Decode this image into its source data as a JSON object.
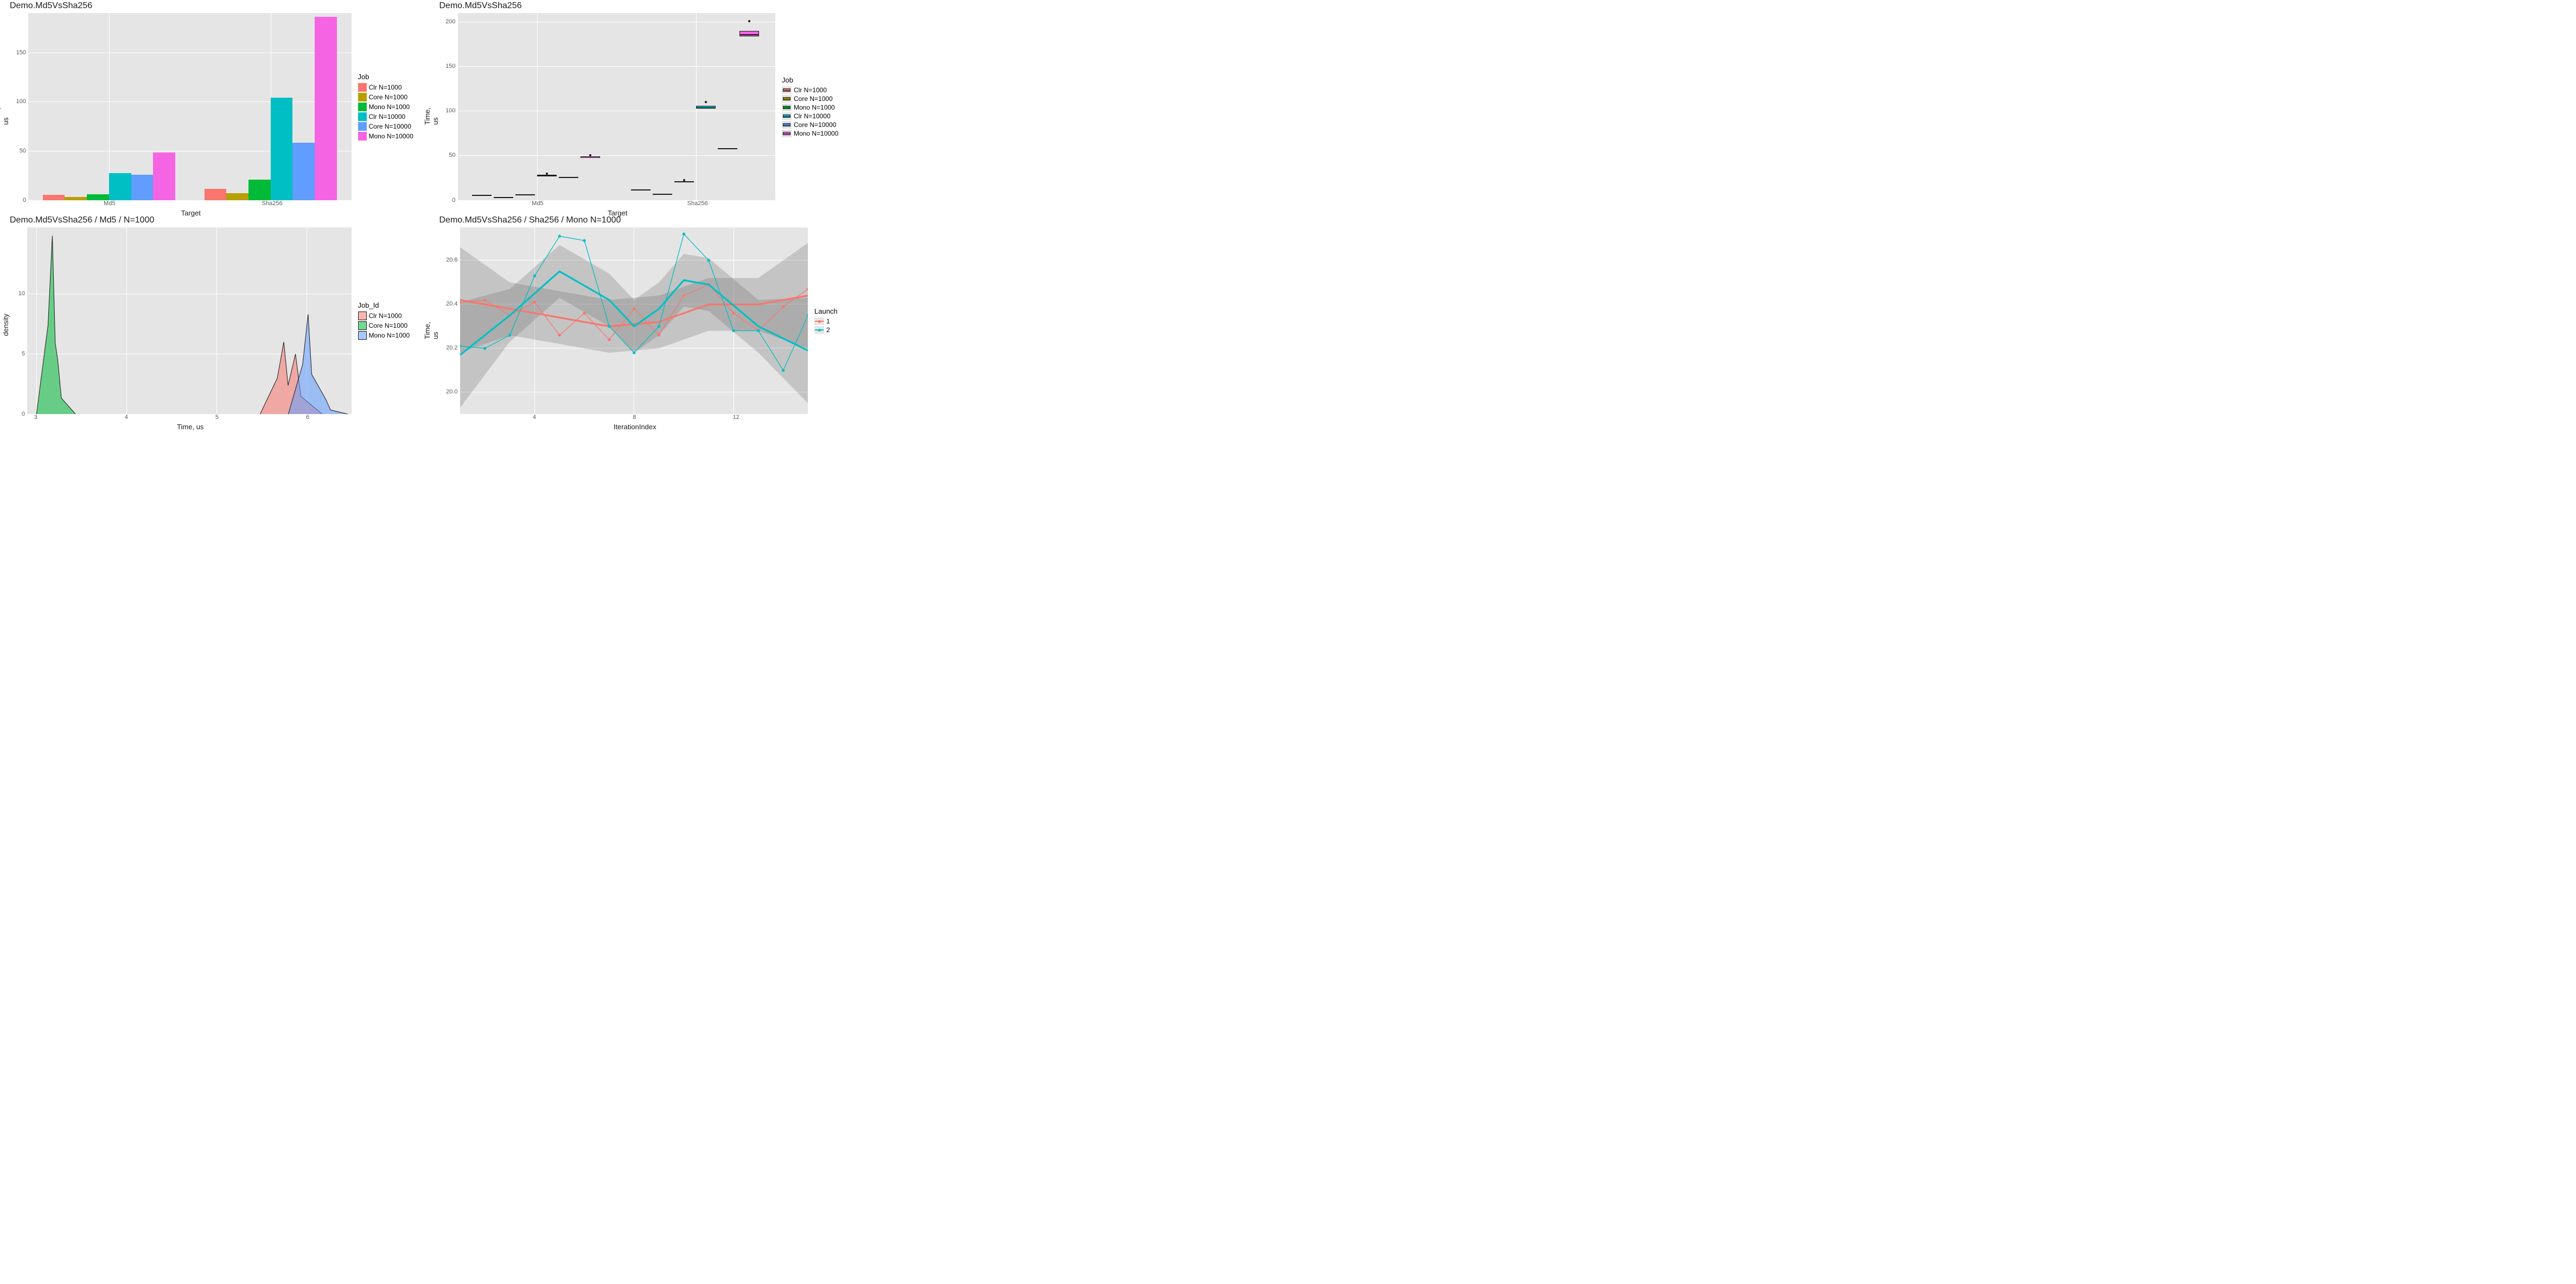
{
  "chart1": {
    "title": "Demo.Md5VsSha256",
    "xlabel": "Target",
    "ylabel": "Time, us",
    "type": "bar",
    "background": "#e5e5e5",
    "grid_color": "#ffffff",
    "categories": [
      "Md5",
      "Sha256"
    ],
    "series": [
      {
        "name": "Clr N=1000",
        "color": "#F8766D",
        "values": [
          5.5,
          11.5
        ]
      },
      {
        "name": "Core N=1000",
        "color": "#B79F00",
        "values": [
          3.2,
          7
        ]
      },
      {
        "name": "Mono N=1000",
        "color": "#00BA38",
        "values": [
          5.8,
          20.5
        ]
      },
      {
        "name": "Clr N=10000",
        "color": "#00BFC4",
        "values": [
          27.5,
          104
        ]
      },
      {
        "name": "Core N=10000",
        "color": "#619CFF",
        "values": [
          25.5,
          58
        ]
      },
      {
        "name": "Mono N=10000",
        "color": "#F564E3",
        "values": [
          48,
          186
        ]
      }
    ],
    "yticks": [
      0,
      50,
      100,
      150
    ],
    "ylim": [
      0,
      190
    ],
    "legend_title": "Job"
  },
  "chart2": {
    "title": "Demo.Md5VsSha256",
    "xlabel": "Target",
    "ylabel": "Time, us",
    "type": "boxplot",
    "background": "#e5e5e5",
    "grid_color": "#ffffff",
    "categories": [
      "Md5",
      "Sha256"
    ],
    "series": [
      {
        "name": "Clr N=1000",
        "color": "#F8766D"
      },
      {
        "name": "Core N=1000",
        "color": "#B79F00"
      },
      {
        "name": "Mono N=1000",
        "color": "#00BA38"
      },
      {
        "name": "Clr N=10000",
        "color": "#00BFC4"
      },
      {
        "name": "Core N=10000",
        "color": "#619CFF"
      },
      {
        "name": "Mono N=10000",
        "color": "#F564E3"
      }
    ],
    "boxes": [
      {
        "cat": 0,
        "series": 0,
        "q1": 5.3,
        "med": 5.5,
        "q3": 5.7
      },
      {
        "cat": 0,
        "series": 1,
        "q1": 3.0,
        "med": 3.2,
        "q3": 3.4
      },
      {
        "cat": 0,
        "series": 2,
        "q1": 5.5,
        "med": 5.8,
        "q3": 6.1
      },
      {
        "cat": 0,
        "series": 3,
        "q1": 26.5,
        "med": 27.5,
        "q3": 28.5,
        "outliers": [
          29.5
        ]
      },
      {
        "cat": 0,
        "series": 4,
        "q1": 25.0,
        "med": 25.5,
        "q3": 26.0
      },
      {
        "cat": 0,
        "series": 5,
        "q1": 47,
        "med": 48,
        "q3": 49,
        "outliers": [
          50
        ]
      },
      {
        "cat": 1,
        "series": 0,
        "q1": 11.2,
        "med": 11.5,
        "q3": 11.8
      },
      {
        "cat": 1,
        "series": 1,
        "q1": 6.7,
        "med": 7,
        "q3": 7.3
      },
      {
        "cat": 1,
        "series": 2,
        "q1": 20,
        "med": 20.5,
        "q3": 21,
        "outliers": [
          22
        ]
      },
      {
        "cat": 1,
        "series": 3,
        "q1": 103,
        "med": 104,
        "q3": 106,
        "outliers": [
          110
        ]
      },
      {
        "cat": 1,
        "series": 4,
        "q1": 57.5,
        "med": 58,
        "q3": 58.5
      },
      {
        "cat": 1,
        "series": 5,
        "q1": 184,
        "med": 186,
        "q3": 190,
        "outliers": [
          201
        ]
      }
    ],
    "yticks": [
      0,
      50,
      100,
      150,
      200
    ],
    "ylim": [
      0,
      210
    ],
    "legend_title": "Job"
  },
  "chart3": {
    "title": "Demo.Md5VsSha256 / Md5 / N=1000",
    "xlabel": "Time, us",
    "ylabel": "density",
    "type": "density",
    "background": "#e5e5e5",
    "grid_color": "#ffffff",
    "xticks": [
      3,
      4,
      5,
      6
    ],
    "yticks": [
      0,
      5,
      10
    ],
    "xlim": [
      2.9,
      6.5
    ],
    "ylim": [
      0,
      15.5
    ],
    "series": [
      {
        "name": "Clr N=1000",
        "color": "#F8766D",
        "fill": "rgba(248,118,109,0.55)"
      },
      {
        "name": "Core N=1000",
        "color": "#00BA38",
        "fill": "rgba(0,186,56,0.55)"
      },
      {
        "name": "Mono N=1000",
        "color": "#619CFF",
        "fill": "rgba(97,156,255,0.55)"
      }
    ],
    "densities": {
      "core": {
        "peak_x": 3.18,
        "peak_y": 14.8,
        "width": 0.08,
        "secondary_peak_x": 3.24,
        "secondary_peak_y": 4.5
      },
      "clr": {
        "peak_x": 5.75,
        "peak_y": 6.0,
        "width": 0.12,
        "secondary_peak_x": 5.88,
        "secondary_peak_y": 5.0
      },
      "mono": {
        "peak_x": 6.02,
        "peak_y": 8.3,
        "width": 0.1,
        "secondary_peak_x": 6.22,
        "secondary_peak_y": 1.2
      }
    },
    "legend_title": "Job_Id"
  },
  "chart4": {
    "title": "Demo.Md5VsSha256 / Sha256 / Mono N=1000",
    "xlabel": "IterationIndex",
    "ylabel": "Time, us",
    "type": "line",
    "background": "#e5e5e5",
    "grid_color": "#ffffff",
    "xticks": [
      4,
      8,
      12
    ],
    "yticks": [
      20.0,
      20.2,
      20.4,
      20.6
    ],
    "xlim": [
      1,
      15
    ],
    "ylim": [
      19.9,
      20.75
    ],
    "series": [
      {
        "name": "1",
        "color": "#F8766D",
        "points": [
          [
            1,
            20.41
          ],
          [
            2,
            20.42
          ],
          [
            3,
            20.35
          ],
          [
            4,
            20.41
          ],
          [
            5,
            20.26
          ],
          [
            6,
            20.36
          ],
          [
            7,
            20.24
          ],
          [
            8,
            20.38
          ],
          [
            9,
            20.26
          ],
          [
            10,
            20.44
          ],
          [
            11,
            20.49
          ],
          [
            12,
            20.36
          ],
          [
            13,
            20.28
          ],
          [
            14,
            20.39
          ],
          [
            15,
            20.47
          ]
        ],
        "smooth": [
          [
            1,
            20.42
          ],
          [
            3,
            20.38
          ],
          [
            5,
            20.34
          ],
          [
            7,
            20.3
          ],
          [
            9,
            20.32
          ],
          [
            11,
            20.4
          ],
          [
            13,
            20.4
          ],
          [
            15,
            20.44
          ]
        ]
      },
      {
        "name": "2",
        "color": "#00BFC4",
        "points": [
          [
            1,
            20.21
          ],
          [
            2,
            20.2
          ],
          [
            3,
            20.26
          ],
          [
            4,
            20.53
          ],
          [
            5,
            20.71
          ],
          [
            6,
            20.69
          ],
          [
            7,
            20.3
          ],
          [
            8,
            20.18
          ],
          [
            9,
            20.3
          ],
          [
            10,
            20.72
          ],
          [
            11,
            20.6
          ],
          [
            12,
            20.28
          ],
          [
            13,
            20.28
          ],
          [
            14,
            20.1
          ],
          [
            15,
            20.35
          ]
        ],
        "smooth": [
          [
            1,
            20.17
          ],
          [
            3,
            20.35
          ],
          [
            5,
            20.55
          ],
          [
            7,
            20.42
          ],
          [
            8,
            20.3
          ],
          [
            9,
            20.38
          ],
          [
            10,
            20.51
          ],
          [
            11,
            20.49
          ],
          [
            13,
            20.3
          ],
          [
            15,
            20.19
          ]
        ]
      }
    ],
    "legend_title": "Launch"
  }
}
